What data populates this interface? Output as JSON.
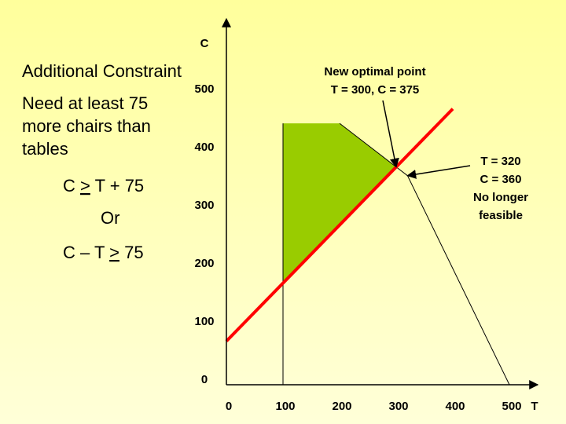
{
  "chart_data": {
    "type": "line",
    "heading": "Additional Constraint",
    "description": [
      "Need at least 75",
      "more chairs than",
      "tables"
    ],
    "constraint": {
      "before": "C ",
      "symbol": ">",
      "after": " T + 75"
    },
    "connector": "Or",
    "constraint_alt": {
      "before": "C – T ",
      "symbol": ">",
      "after": " 75"
    },
    "x_label": "T",
    "y_label": "C",
    "xlim": [
      0,
      550
    ],
    "ylim": [
      0,
      630
    ],
    "xticks": [
      0,
      100,
      200,
      300,
      400,
      500
    ],
    "yticks": [
      0,
      100,
      200,
      300,
      400,
      500
    ],
    "region": {
      "color": "#99cc00",
      "x": [
        100,
        100,
        200,
        300
      ],
      "y": [
        175,
        450,
        450,
        375
      ]
    },
    "boundary": {
      "color": "#000000",
      "x": [
        200,
        320,
        500
      ],
      "y": [
        450,
        360,
        0
      ]
    },
    "edge": {
      "color": "#000000",
      "x": [
        100,
        100
      ],
      "y": [
        0,
        450
      ]
    },
    "new_constraint": {
      "color": "#ff0000",
      "x": [
        0,
        400
      ],
      "y": [
        75,
        475
      ]
    },
    "annotations": [
      {
        "lines": [
          "New optimal point",
          "T = 300, C = 375"
        ],
        "x": 300,
        "y": 375
      },
      {
        "lines": [
          "T = 320",
          "C = 360",
          "No longer",
          "feasible"
        ],
        "x": 320,
        "y": 360
      }
    ]
  }
}
